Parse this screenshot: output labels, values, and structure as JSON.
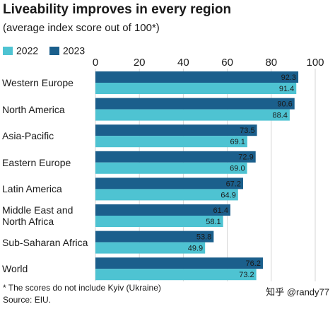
{
  "chart_data": {
    "type": "bar",
    "orientation": "horizontal",
    "title": "Liveability improves in every region",
    "subtitle": "(average index score out of 100*)",
    "categories": [
      "Western Europe",
      "North America",
      "Asia-Pacific",
      "Eastern Europe",
      "Latin America",
      "Middle East and North Africa",
      "Sub-Saharan Africa",
      "World"
    ],
    "series": [
      {
        "name": "2022",
        "color": "#4ec3d2",
        "values": [
          91.4,
          88.4,
          69.1,
          69.0,
          64.9,
          58.1,
          49.9,
          73.2
        ],
        "value_labels": [
          "91.4",
          "88.4",
          "69.1",
          "69.0",
          "64.9",
          "58.1",
          "49.9",
          "73.2"
        ]
      },
      {
        "name": "2023",
        "color": "#1b5f8c",
        "values": [
          92.3,
          90.6,
          73.5,
          72.9,
          67.2,
          61.4,
          53.8,
          76.2
        ],
        "value_labels": [
          "92.3",
          "90.6",
          "73.5",
          "72.9",
          "67.2",
          "61.4",
          "53.8",
          "76.2"
        ]
      }
    ],
    "xlim": [
      0,
      100
    ],
    "xticks": [
      0,
      20,
      40,
      60,
      80,
      100
    ],
    "grid": true,
    "footnote": "* The scores do not include Kyiv (Ukraine)",
    "source": "Source: EIU.",
    "watermark": "知乎 @randy77"
  }
}
